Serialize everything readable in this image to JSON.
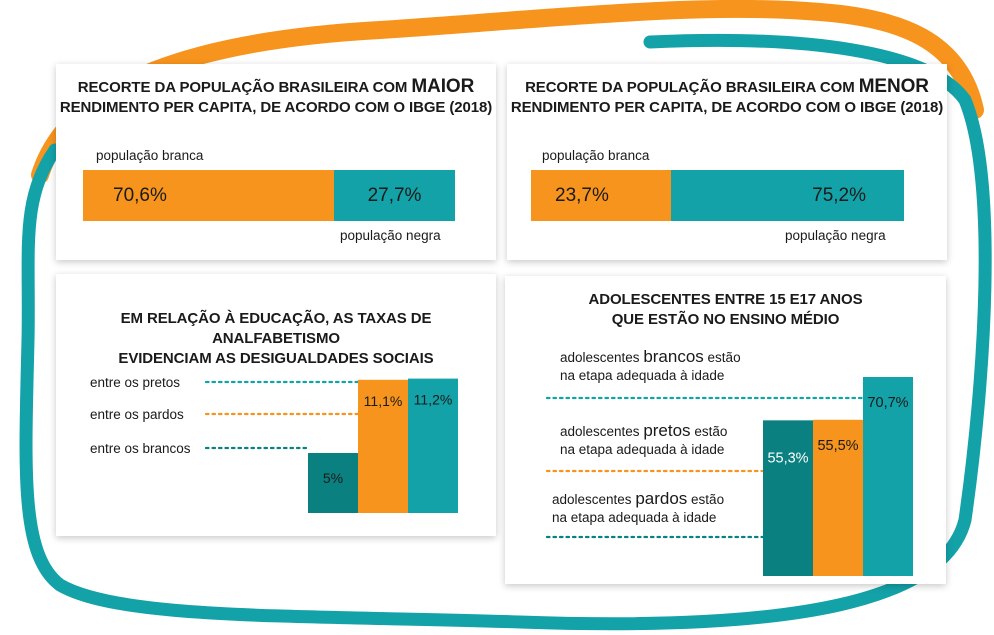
{
  "colors": {
    "orange": "#f7941d",
    "teal": "#13a2a8",
    "dark_teal": "#0b8080"
  },
  "chart_data": [
    {
      "type": "bar",
      "orientation": "horizontal-stacked",
      "title_pre": "RECORTE DA POPULAÇÃO BRASILEIRA COM ",
      "title_big": "MAIOR",
      "title_line2": "RENDIMENTO PER CAPITA, DE ACORDO COM O IBGE (2018)",
      "series": [
        {
          "name": "população branca",
          "value": 70.6,
          "label": "70,6%",
          "color": "#f7941d"
        },
        {
          "name": "população negra",
          "value": 27.7,
          "label": "27,7%",
          "color": "#13a2a8"
        }
      ]
    },
    {
      "type": "bar",
      "orientation": "horizontal-stacked",
      "title_pre": "RECORTE DA POPULAÇÃO BRASILEIRA COM ",
      "title_big": "MENOR",
      "title_line2": "RENDIMENTO PER CAPITA, DE ACORDO COM O IBGE (2018)",
      "series": [
        {
          "name": "população branca",
          "value": 23.7,
          "label": "23,7%",
          "color": "#f7941d"
        },
        {
          "name": "população negra",
          "value": 75.2,
          "label": "75,2%",
          "color": "#13a2a8"
        }
      ]
    },
    {
      "type": "bar",
      "title_line1": "EM RELAÇÃO À EDUCAÇÃO, AS TAXAS DE ANALFABETISMO",
      "title_line2": "EVIDENCIAM AS DESIGUALDADES SOCIAIS",
      "bars": [
        {
          "category": "entre os brancos",
          "value": 5,
          "label": "5%",
          "color": "#0b8080"
        },
        {
          "category": "entre os pardos",
          "value": 11.1,
          "label": "11,1%",
          "color": "#f7941d"
        },
        {
          "category": "entre os pretos",
          "value": 11.2,
          "label": "11,2%",
          "color": "#13a2a8"
        }
      ]
    },
    {
      "type": "bar",
      "title_line1": "ADOLESCENTES ENTRE 15 E17 ANOS",
      "title_line2": "QUE ESTÃO NO ENSINO MÉDIO",
      "bars": [
        {
          "pre": "adolescentes ",
          "highlight": "pardos",
          "post": " estão",
          "line2": "na etapa adequada à idade",
          "value": 55.3,
          "label": "55,3%",
          "color": "#0b8080"
        },
        {
          "pre": "adolescentes ",
          "highlight": "pretos",
          "post": " estão",
          "line2": "na etapa adequada à idade",
          "value": 55.5,
          "label": "55,5%",
          "color": "#f7941d"
        },
        {
          "pre": "adolescentes ",
          "highlight": "brancos",
          "post": " estão",
          "line2": "na etapa adequada à idade",
          "value": 70.7,
          "label": "70,7%",
          "color": "#13a2a8"
        }
      ]
    }
  ]
}
